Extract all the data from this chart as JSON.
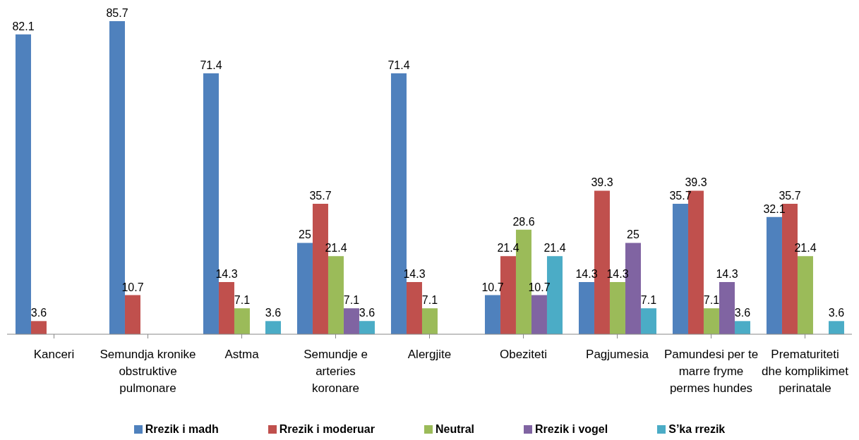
{
  "chart_data": {
    "type": "bar",
    "categories": [
      "Kanceri",
      "Semundja kronike obstruktive pulmonare",
      "Astma",
      "Semundje e arteries koronare",
      "Alergjite",
      "Obeziteti",
      "Pagjumesia",
      "Pamundesi per te marre fryme permes hundes",
      "Prematuriteti dhe komplikimet perinatale"
    ],
    "series": [
      {
        "name": "Rrezik i madh",
        "color": "#4f81bd",
        "values": [
          82.1,
          85.7,
          71.4,
          25,
          71.4,
          10.7,
          14.3,
          35.7,
          32.1
        ]
      },
      {
        "name": "Rrezik i moderuar",
        "color": "#c0504d",
        "values": [
          3.6,
          10.7,
          14.3,
          35.7,
          14.3,
          21.4,
          39.3,
          39.3,
          35.7
        ]
      },
      {
        "name": "Neutral",
        "color": "#9bbb59",
        "values": [
          null,
          null,
          7.1,
          21.4,
          7.1,
          28.6,
          14.3,
          7.1,
          21.4
        ]
      },
      {
        "name": "Rrezik i vogel",
        "color": "#8064a2",
        "values": [
          null,
          null,
          null,
          7.1,
          null,
          10.7,
          25,
          14.3,
          null
        ]
      },
      {
        "name": "S’ka rrezik",
        "color": "#4bacc6",
        "values": [
          null,
          null,
          3.6,
          3.6,
          null,
          21.4,
          7.1,
          3.6,
          3.6
        ]
      }
    ],
    "data_labels": true,
    "legend": "bottom",
    "grid": false
  }
}
